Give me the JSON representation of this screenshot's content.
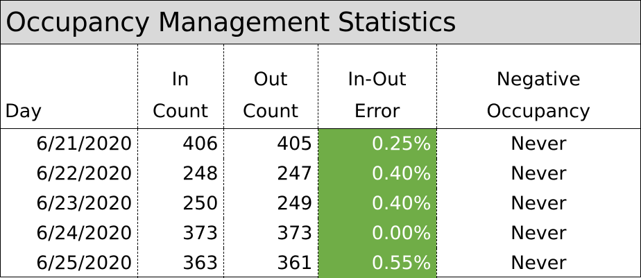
{
  "title": "Occupancy Management Statistics",
  "headers": {
    "day": [
      "Day"
    ],
    "in_count": [
      "In",
      "Count"
    ],
    "out_count": [
      "Out",
      "Count"
    ],
    "in_out_error": [
      "In-Out",
      "Error"
    ],
    "negative_occupancy": [
      "Negative",
      "Occupancy"
    ]
  },
  "rows": [
    {
      "day": "6/21/2020",
      "in": "406",
      "out": "405",
      "error": "0.25%",
      "negative": "Never"
    },
    {
      "day": "6/22/2020",
      "in": "248",
      "out": "247",
      "error": "0.40%",
      "negative": "Never"
    },
    {
      "day": "6/23/2020",
      "in": "250",
      "out": "249",
      "error": "0.40%",
      "negative": "Never"
    },
    {
      "day": "6/24/2020",
      "in": "373",
      "out": "373",
      "error": "0.00%",
      "negative": "Never"
    },
    {
      "day": "6/25/2020",
      "in": "363",
      "out": "361",
      "error": "0.55%",
      "negative": "Never"
    }
  ],
  "colors": {
    "title_background": "#d9d9d9",
    "error_highlight": "#70ad47",
    "error_text": "#ffffff"
  }
}
